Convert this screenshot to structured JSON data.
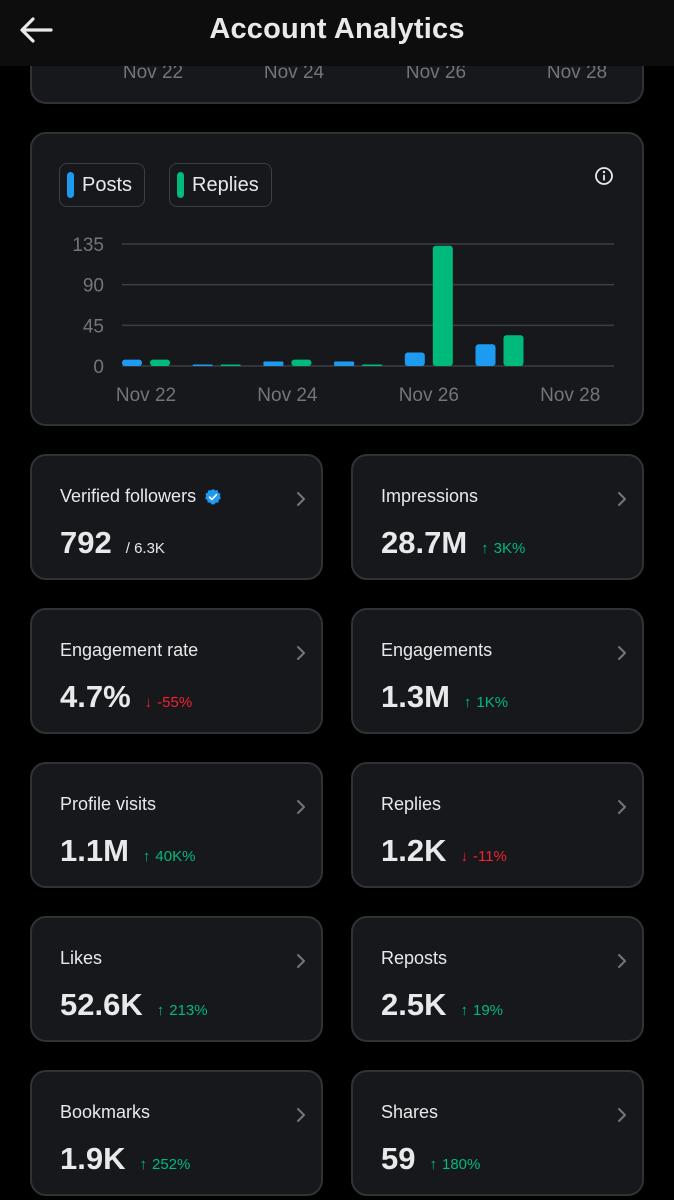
{
  "header": {
    "title": "Account Analytics",
    "back_icon": "arrow-left-icon"
  },
  "top_chart_axis": [
    "Nov 22",
    "Nov 24",
    "Nov 26",
    "Nov 28"
  ],
  "colors": {
    "posts": "#1d9bf0",
    "replies": "#00ba7c",
    "up": "#00ba7c",
    "down": "#f4212e",
    "verified": "#1d9bf0"
  },
  "chart_data": {
    "type": "bar",
    "legend": [
      "Posts",
      "Replies"
    ],
    "x": [
      "Nov 21.5",
      "Nov 22.0",
      "Nov 23",
      "Nov 23.5",
      "Nov 24",
      "Nov 24.5",
      "Nov 25",
      "Nov 25.5",
      "Nov 26",
      "Nov 26.5",
      "Nov 27",
      "Nov 27.5"
    ],
    "groups": [
      {
        "date": "Nov 22",
        "posts": 7,
        "replies": 7
      },
      {
        "date": "Nov 23",
        "posts": 0,
        "replies": 1
      },
      {
        "date": "Nov 24",
        "posts": 5,
        "replies": 7
      },
      {
        "date": "Nov 25",
        "posts": 5,
        "replies": 1
      },
      {
        "date": "Nov 26",
        "posts": 15,
        "replies": 133
      },
      {
        "date": "Nov 27",
        "posts": 24,
        "replies": 34
      }
    ],
    "yticks": [
      0,
      45,
      90,
      135
    ],
    "ylim": [
      0,
      135
    ],
    "xtick_labels": [
      "Nov 22",
      "Nov 24",
      "Nov 26",
      "Nov 28"
    ],
    "grid": true
  },
  "metrics": [
    {
      "title": "Verified followers",
      "value": "792",
      "sub": "/ 6.3K",
      "verified": true
    },
    {
      "title": "Impressions",
      "value": "28.7M",
      "delta": "3K%",
      "dir": "up"
    },
    {
      "title": "Engagement rate",
      "value": "4.7%",
      "delta": "-55%",
      "dir": "down"
    },
    {
      "title": "Engagements",
      "value": "1.3M",
      "delta": "1K%",
      "dir": "up"
    },
    {
      "title": "Profile visits",
      "value": "1.1M",
      "delta": "40K%",
      "dir": "up"
    },
    {
      "title": "Replies",
      "value": "1.2K",
      "delta": "-11%",
      "dir": "down"
    },
    {
      "title": "Likes",
      "value": "52.6K",
      "delta": "213%",
      "dir": "up"
    },
    {
      "title": "Reposts",
      "value": "2.5K",
      "delta": "19%",
      "dir": "up"
    },
    {
      "title": "Bookmarks",
      "value": "1.9K",
      "delta": "252%",
      "dir": "up"
    },
    {
      "title": "Shares",
      "value": "59",
      "delta": "180%",
      "dir": "up"
    }
  ]
}
